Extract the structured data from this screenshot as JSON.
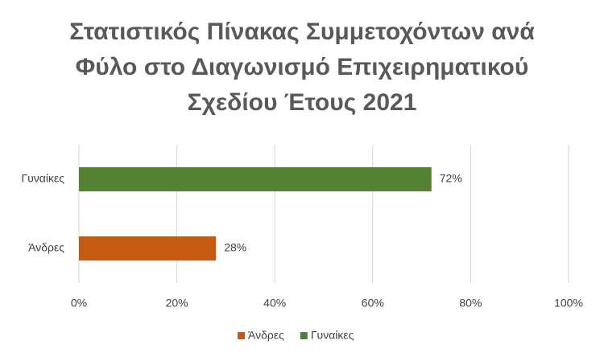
{
  "chart_data": {
    "type": "bar",
    "orientation": "horizontal",
    "title": "Στατιστικός Πίνακας Συμμετοχόντων ανά Φύλο στο Διαγωνισμό Επιχειρηματικού Σχεδίου Έτους 2021",
    "categories": [
      "Άνδρες",
      "Γυναίκες"
    ],
    "series": [
      {
        "name": "Άνδρες",
        "color": "#c55a11",
        "values": [
          28,
          null
        ],
        "value_labels": [
          "28%",
          null
        ]
      },
      {
        "name": "Γυναίκες",
        "color": "#548235",
        "values": [
          null,
          72
        ],
        "value_labels": [
          null,
          "72%"
        ]
      }
    ],
    "xlim": [
      0,
      100
    ],
    "xticks": [
      {
        "value": 0,
        "label": "0%"
      },
      {
        "value": 20,
        "label": "20%"
      },
      {
        "value": 40,
        "label": "40%"
      },
      {
        "value": 60,
        "label": "60%"
      },
      {
        "value": 80,
        "label": "80%"
      },
      {
        "value": 100,
        "label": "100%"
      }
    ],
    "grid": true,
    "legend": "bottom"
  }
}
